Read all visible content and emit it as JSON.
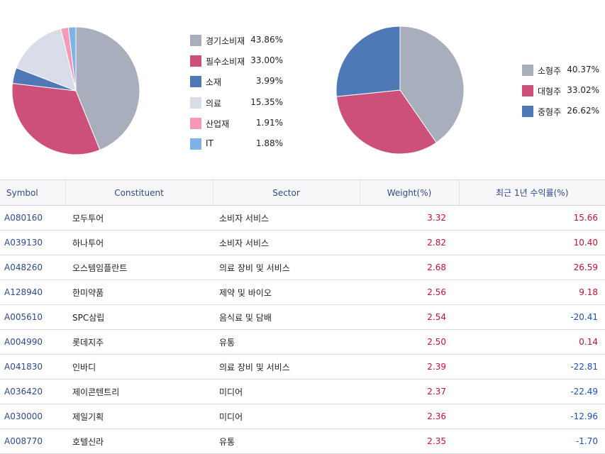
{
  "chart_data": [
    {
      "type": "pie",
      "slices": [
        {
          "label": "경기소비재",
          "value": 43.86,
          "value_label": "43.86%",
          "color": "#a8aebb"
        },
        {
          "label": "필수소비재",
          "value": 33.0,
          "value_label": "33.00%",
          "color": "#cc5079"
        },
        {
          "label": "소재",
          "value": 3.99,
          "value_label": "3.99%",
          "color": "#4f79b6"
        },
        {
          "label": "의료",
          "value": 15.35,
          "value_label": "15.35%",
          "color": "#d8dde9"
        },
        {
          "label": "산업재",
          "value": 1.91,
          "value_label": "1.91%",
          "color": "#f49ab8"
        },
        {
          "label": "IT",
          "value": 1.88,
          "value_label": "1.88%",
          "color": "#7eb4e5"
        }
      ],
      "legend_position": "right"
    },
    {
      "type": "pie",
      "slices": [
        {
          "label": "소형주",
          "value": 40.37,
          "value_label": "40.37%",
          "color": "#a8aebb"
        },
        {
          "label": "대형주",
          "value": 33.02,
          "value_label": "33.02%",
          "color": "#cc5079"
        },
        {
          "label": "중형주",
          "value": 26.62,
          "value_label": "26.62%",
          "color": "#4f79b6"
        }
      ],
      "legend_position": "right"
    }
  ],
  "table": {
    "headers": [
      "Symbol",
      "Constituent",
      "Sector",
      "Weight(%)",
      "최근 1년 수익률(%)"
    ],
    "rows": [
      {
        "symbol": "A080160",
        "name": "모두투어",
        "sector": "소비자 서비스",
        "weight": "3.32",
        "return": "15.66"
      },
      {
        "symbol": "A039130",
        "name": "하나투어",
        "sector": "소비자 서비스",
        "weight": "2.82",
        "return": "10.40"
      },
      {
        "symbol": "A048260",
        "name": "오스템임플란트",
        "sector": "의료 장비 및 서비스",
        "weight": "2.68",
        "return": "26.59"
      },
      {
        "symbol": "A128940",
        "name": "한미약품",
        "sector": "제약 및 바이오",
        "weight": "2.56",
        "return": "9.18"
      },
      {
        "symbol": "A005610",
        "name": "SPC삼립",
        "sector": "음식료 및 담배",
        "weight": "2.54",
        "return": "-20.41"
      },
      {
        "symbol": "A004990",
        "name": "롯데지주",
        "sector": "유통",
        "weight": "2.50",
        "return": "0.14"
      },
      {
        "symbol": "A041830",
        "name": "인바디",
        "sector": "의료 장비 및 서비스",
        "weight": "2.39",
        "return": "-22.81"
      },
      {
        "symbol": "A036420",
        "name": "제이콘텐트리",
        "sector": "미디어",
        "weight": "2.37",
        "return": "-22.49"
      },
      {
        "symbol": "A030000",
        "name": "제일기획",
        "sector": "미디어",
        "weight": "2.36",
        "return": "-12.96"
      },
      {
        "symbol": "A008770",
        "name": "호텔신라",
        "sector": "유통",
        "weight": "2.35",
        "return": "-1.70"
      }
    ]
  }
}
